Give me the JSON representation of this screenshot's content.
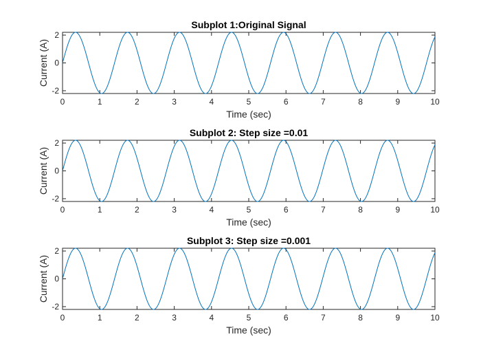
{
  "chart_data": [
    {
      "type": "line",
      "title": "Subplot 1:Original Signal",
      "xlabel": "Time (sec)",
      "ylabel": "Current (A)",
      "xlim": [
        0,
        10
      ],
      "ylim": [
        -2.2,
        2.2
      ],
      "xticks": [
        0,
        1,
        2,
        3,
        4,
        5,
        6,
        7,
        8,
        9,
        10
      ],
      "yticks": [
        -2,
        0,
        2
      ],
      "series": [
        {
          "function": "2.2*sin(4.5*t)",
          "amplitude": 2.2,
          "angular_frequency": 4.5,
          "t_range": [
            0,
            10
          ],
          "color": "#0072BD"
        }
      ]
    },
    {
      "type": "line",
      "title": "Subplot 2: Step size =0.01",
      "xlabel": "Time (sec)",
      "ylabel": "Current (A)",
      "xlim": [
        0,
        10
      ],
      "ylim": [
        -2.2,
        2.2
      ],
      "xticks": [
        0,
        1,
        2,
        3,
        4,
        5,
        6,
        7,
        8,
        9,
        10
      ],
      "yticks": [
        -2,
        0,
        2
      ],
      "series": [
        {
          "function": "2.2*sin(4.5*t)",
          "amplitude": 2.2,
          "angular_frequency": 4.5,
          "t_range": [
            0,
            10
          ],
          "step": 0.01,
          "color": "#0072BD"
        }
      ]
    },
    {
      "type": "line",
      "title": "Subplot 3: Step size =0.001",
      "xlabel": "Time (sec)",
      "ylabel": "Current (A)",
      "xlim": [
        0,
        10
      ],
      "ylim": [
        -2.2,
        2.2
      ],
      "xticks": [
        0,
        1,
        2,
        3,
        4,
        5,
        6,
        7,
        8,
        9,
        10
      ],
      "yticks": [
        -2,
        0,
        2
      ],
      "series": [
        {
          "function": "2.2*sin(4.5*t)",
          "amplitude": 2.2,
          "angular_frequency": 4.5,
          "t_range": [
            0,
            10
          ],
          "step": 0.001,
          "color": "#0072BD"
        }
      ]
    }
  ]
}
